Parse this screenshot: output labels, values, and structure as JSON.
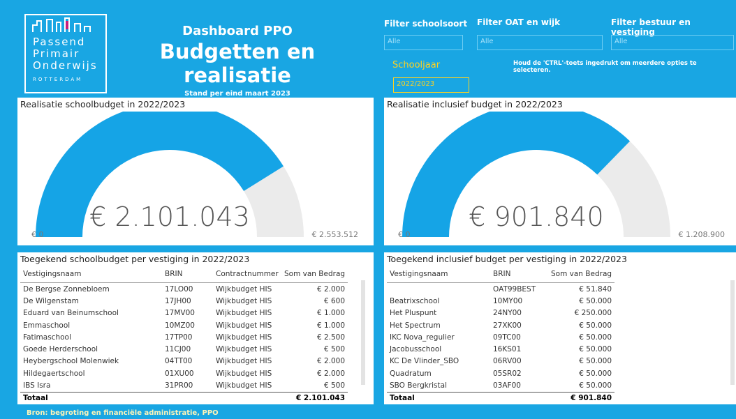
{
  "header": {
    "logo": [
      "Passend",
      "Primair",
      "Onderwijs",
      "ROTTERDAM"
    ],
    "kicker": "Dashboard PPO",
    "title": "Budgetten en realisatie",
    "subtitle": "Stand per eind maart 2023"
  },
  "filters": [
    {
      "label": "Filter schoolsoort",
      "value": "Alle"
    },
    {
      "label": "Filter OAT en wijk",
      "value": "Alle"
    },
    {
      "label": "Filter bestuur en vestiging",
      "value": "Alle"
    }
  ],
  "year_filter": {
    "label": "Schooljaar",
    "value": "2022/2023"
  },
  "hint": "Houd de 'CTRL'-toets ingedrukt om meerdere opties te selecteren.",
  "gauges": [
    {
      "title": "Realisatie schoolbudget in 2022/2023",
      "value": 2101043,
      "value_label": "€ 2.101.043",
      "min": 0,
      "min_label": "€ 0",
      "max": 2553512,
      "max_label": "€ 2.553.512"
    },
    {
      "title": "Realisatie inclusief budget in 2022/2023",
      "value": 901840,
      "value_label": "€ 901.840",
      "min": 0,
      "min_label": "€ 0",
      "max": 1208900,
      "max_label": "€ 1.208.900"
    }
  ],
  "tables": [
    {
      "title": "Toegekend schoolbudget per vestiging in 2022/2023",
      "columns": [
        "Vestigingsnaam",
        "BRIN",
        "Contractnummer",
        "Som van Bedrag"
      ],
      "rows": [
        [
          "De Bergse Zonnebloem",
          "17LO00",
          "Wijkbudget HIS",
          "€ 2.000"
        ],
        [
          "De Wilgenstam",
          "17JH00",
          "Wijkbudget HIS",
          "€ 600"
        ],
        [
          "Eduard van Beinumschool",
          "17MV00",
          "Wijkbudget HIS",
          "€ 1.000"
        ],
        [
          "Emmaschool",
          "10MZ00",
          "Wijkbudget HIS",
          "€ 1.000"
        ],
        [
          "Fatimaschool",
          "17TP00",
          "Wijkbudget HIS",
          "€ 2.500"
        ],
        [
          "Goede Herderschool",
          "11CJ00",
          "Wijkbudget HIS",
          "€ 500"
        ],
        [
          "Heybergschool Molenwiek",
          "04TT00",
          "Wijkbudget HIS",
          "€ 2.000"
        ],
        [
          "Hildegaertschool",
          "01XU00",
          "Wijkbudget HIS",
          "€ 2.000"
        ],
        [
          "IBS Isra",
          "31PR00",
          "Wijkbudget HIS",
          "€ 500"
        ]
      ],
      "total": {
        "label": "Totaal",
        "value": "€ 2.101.043"
      }
    },
    {
      "title": "Toegekend inclusief budget per vestiging in 2022/2023",
      "columns": [
        "Vestigingsnaam",
        "BRIN",
        "Som van Bedrag"
      ],
      "rows": [
        [
          null,
          "OAT99BEST",
          "€ 51.840"
        ],
        [
          "Beatrixschool",
          "10MY00",
          "€ 50.000"
        ],
        [
          "Het Pluspunt",
          "24NY00",
          "€ 250.000"
        ],
        [
          "Het Spectrum",
          "27XK00",
          "€ 50.000"
        ],
        [
          "IKC Nova_regulier",
          "09TC00",
          "€ 50.000"
        ],
        [
          "Jacobusschool",
          "16KS01",
          "€ 50.000"
        ],
        [
          "KC De Vlinder_SBO",
          "06RV00",
          "€ 50.000"
        ],
        [
          "Quadratum",
          "05SR02",
          "€ 50.000"
        ],
        [
          "SBO Bergkristal",
          "03AF00",
          "€ 50.000"
        ]
      ],
      "total": {
        "label": "Totaal",
        "value": "€ 901.840"
      }
    }
  ],
  "footer": "Bron: begroting en financiële administratie, PPO"
}
